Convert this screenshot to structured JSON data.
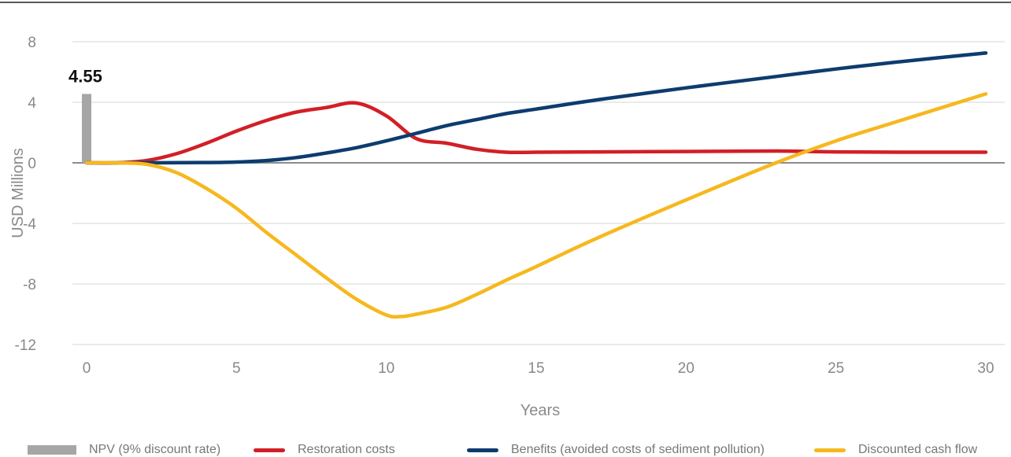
{
  "chart_data": {
    "type": "line",
    "title": "",
    "xlabel": "Years",
    "ylabel": "USD Millions",
    "xlim": [
      0,
      30
    ],
    "ylim": [
      -12,
      8
    ],
    "xticks": [
      0,
      5,
      10,
      15,
      20,
      25,
      30
    ],
    "yticks": [
      8,
      4,
      0,
      -4,
      -8,
      -12
    ],
    "grid": "horizontal",
    "legend_position": "bottom",
    "bar": {
      "name": "NPV (9% discount rate)",
      "x": 0,
      "value": 4.55,
      "label": "4.55",
      "color": "#a6a6a6"
    },
    "series": [
      {
        "name": "Restoration costs",
        "color": "#d21f26",
        "points": [
          [
            0,
            0
          ],
          [
            1,
            0
          ],
          [
            2,
            0.15
          ],
          [
            3,
            0.6
          ],
          [
            4,
            1.3
          ],
          [
            5,
            2.1
          ],
          [
            6,
            2.8
          ],
          [
            7,
            3.35
          ],
          [
            8,
            3.65
          ],
          [
            9,
            3.95
          ],
          [
            10,
            3.1
          ],
          [
            11,
            1.6
          ],
          [
            12,
            1.3
          ],
          [
            13,
            0.9
          ],
          [
            14,
            0.7
          ],
          [
            15,
            0.7
          ],
          [
            17,
            0.72
          ],
          [
            20,
            0.75
          ],
          [
            23,
            0.78
          ],
          [
            25,
            0.72
          ],
          [
            28,
            0.7
          ],
          [
            30,
            0.7
          ]
        ]
      },
      {
        "name": "Benefits (avoided costs of sediment pollution)",
        "color": "#0d3c6e",
        "points": [
          [
            0,
            0
          ],
          [
            2,
            0
          ],
          [
            4,
            0.02
          ],
          [
            5,
            0.05
          ],
          [
            6,
            0.15
          ],
          [
            7,
            0.35
          ],
          [
            8,
            0.65
          ],
          [
            9,
            1.0
          ],
          [
            10,
            1.45
          ],
          [
            11,
            1.95
          ],
          [
            12,
            2.45
          ],
          [
            13,
            2.85
          ],
          [
            14,
            3.25
          ],
          [
            15,
            3.55
          ],
          [
            17,
            4.15
          ],
          [
            20,
            4.95
          ],
          [
            23,
            5.7
          ],
          [
            25,
            6.2
          ],
          [
            27,
            6.65
          ],
          [
            30,
            7.25
          ]
        ]
      },
      {
        "name": "Discounted cash flow",
        "color": "#f6b81e",
        "points": [
          [
            0,
            0
          ],
          [
            1,
            0
          ],
          [
            2,
            -0.1
          ],
          [
            3,
            -0.65
          ],
          [
            4,
            -1.7
          ],
          [
            5,
            -3.0
          ],
          [
            6,
            -4.6
          ],
          [
            7,
            -6.1
          ],
          [
            8,
            -7.6
          ],
          [
            9,
            -9.0
          ],
          [
            10,
            -10.05
          ],
          [
            10.5,
            -10.15
          ],
          [
            11,
            -10.0
          ],
          [
            12,
            -9.55
          ],
          [
            13,
            -8.7
          ],
          [
            14,
            -7.75
          ],
          [
            15,
            -6.85
          ],
          [
            17,
            -5.0
          ],
          [
            20,
            -2.45
          ],
          [
            23,
            0
          ],
          [
            25,
            1.45
          ],
          [
            27,
            2.7
          ],
          [
            30,
            4.55
          ]
        ]
      }
    ]
  }
}
